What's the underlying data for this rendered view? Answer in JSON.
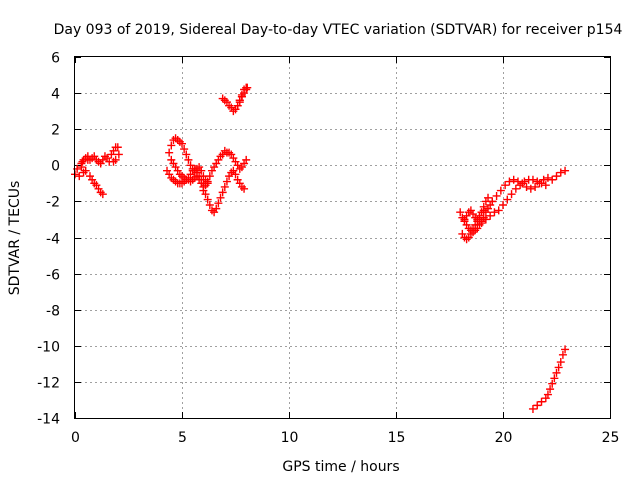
{
  "chart_data": {
    "type": "scatter",
    "title": "Day 093 of 2019, Sidereal Day-to-day VTEC variation (SDTVAR) for receiver p154",
    "xlabel": "GPS time / hours",
    "ylabel": "SDTVAR / TECUs",
    "xlim": [
      0,
      25
    ],
    "ylim": [
      -14,
      6
    ],
    "xticks": [
      0,
      5,
      10,
      15,
      20,
      25
    ],
    "yticks": [
      -14,
      -12,
      -10,
      -8,
      -6,
      -4,
      -2,
      0,
      2,
      4,
      6
    ],
    "grid": true,
    "marker": "plus",
    "color": "#ff0000",
    "series": [
      {
        "name": "p154",
        "x": [
          0.0,
          0.1,
          0.2,
          0.3,
          0.35,
          0.4,
          0.5,
          0.6,
          0.7,
          0.8,
          0.9,
          1.0,
          1.1,
          1.2,
          1.3,
          0.3,
          0.4,
          0.5,
          0.6,
          0.7,
          0.8,
          0.9,
          1.0,
          1.1,
          1.2,
          1.3,
          1.4,
          1.5,
          1.6,
          1.7,
          1.8,
          1.9,
          2.0,
          2.05,
          1.9,
          1.8,
          4.4,
          4.5,
          4.6,
          4.7,
          4.8,
          4.9,
          5.0,
          5.1,
          5.2,
          5.3,
          5.4,
          5.5,
          5.6,
          5.7,
          5.8,
          5.9,
          6.0,
          6.1,
          6.2,
          6.3,
          6.4,
          6.5,
          6.6,
          6.7,
          6.8,
          6.9,
          7.0,
          7.1,
          7.2,
          7.3,
          7.4,
          7.5,
          7.6,
          7.7,
          7.8,
          7.9,
          8.0,
          4.5,
          4.6,
          4.7,
          4.8,
          4.9,
          5.0,
          5.1,
          5.2,
          5.3,
          5.4,
          5.5,
          5.6,
          5.7,
          5.8,
          5.9,
          6.0,
          6.0,
          6.1,
          6.2,
          6.3,
          6.4,
          6.5,
          6.6,
          6.7,
          6.8,
          6.9,
          7.0,
          7.1,
          7.2,
          7.3,
          7.4,
          7.5,
          7.6,
          7.7,
          7.8,
          7.9,
          4.3,
          4.4,
          4.5,
          4.6,
          4.7,
          4.8,
          4.9,
          5.0,
          5.1,
          5.2,
          5.3,
          5.4,
          5.5,
          5.6,
          5.7,
          5.8,
          5.9,
          6.0,
          6.1,
          6.2,
          7.6,
          7.7,
          7.8,
          7.9,
          8.0,
          7.8,
          7.7,
          6.9,
          7.0,
          7.1,
          7.2,
          7.3,
          7.4,
          7.5,
          7.6,
          7.7,
          7.8,
          7.9,
          8.0,
          8.05,
          18.0,
          18.1,
          18.2,
          18.3,
          18.4,
          18.5,
          18.6,
          18.7,
          18.8,
          18.9,
          19.0,
          19.1,
          19.2,
          19.3,
          18.1,
          18.2,
          18.3,
          18.4,
          18.5,
          18.6,
          18.7,
          18.8,
          18.9,
          19.0,
          19.1,
          19.2,
          19.3,
          19.4,
          19.5,
          19.0,
          19.2,
          19.4,
          19.6,
          19.8,
          20.0,
          20.2,
          20.4,
          20.6,
          20.8,
          21.0,
          21.2,
          21.4,
          21.6,
          21.8,
          22.0,
          19.5,
          19.7,
          19.9,
          20.1,
          20.3,
          20.5,
          20.7,
          20.9,
          21.1,
          21.3,
          21.5,
          21.7,
          21.9,
          22.1,
          22.3,
          22.5,
          22.7,
          22.9,
          18.2,
          18.3,
          18.4,
          18.5,
          18.6,
          18.7,
          18.8,
          18.9,
          19.0,
          19.1,
          21.4,
          21.6,
          21.8,
          22.0,
          22.1,
          22.2,
          22.3,
          22.4,
          22.5,
          22.6,
          22.7,
          22.8,
          22.9
        ],
        "y": [
          -0.5,
          -0.2,
          -0.6,
          -0.1,
          0.2,
          -0.4,
          -0.3,
          0.3,
          -0.6,
          -0.8,
          -1.0,
          -1.1,
          -1.3,
          -1.5,
          -1.6,
          0.1,
          0.3,
          0.4,
          0.5,
          0.3,
          0.4,
          0.5,
          0.3,
          0.2,
          0.1,
          0.3,
          0.5,
          0.4,
          0.2,
          0.6,
          0.8,
          1.0,
          1.0,
          0.6,
          0.3,
          0.2,
          0.7,
          1.1,
          1.4,
          1.5,
          1.4,
          1.3,
          1.2,
          0.9,
          0.6,
          0.3,
          0.0,
          -0.2,
          -0.3,
          -0.4,
          -0.6,
          -0.8,
          -1.0,
          -1.1,
          -0.9,
          -0.6,
          -0.3,
          -0.1,
          0.1,
          0.3,
          0.5,
          0.6,
          0.8,
          0.7,
          0.7,
          0.6,
          0.4,
          0.2,
          0.0,
          -0.2,
          -0.1,
          0.1,
          0.3,
          0.3,
          0.1,
          -0.1,
          -0.3,
          -0.5,
          -0.6,
          -0.7,
          -0.8,
          -0.8,
          -0.9,
          -0.8,
          -0.7,
          -0.6,
          -0.8,
          -1.0,
          -1.2,
          -1.4,
          -1.6,
          -1.9,
          -2.2,
          -2.5,
          -2.6,
          -2.4,
          -2.1,
          -1.8,
          -1.5,
          -1.2,
          -0.9,
          -0.6,
          -0.4,
          -0.3,
          -0.5,
          -0.8,
          -1.0,
          -1.2,
          -1.3,
          -0.3,
          -0.5,
          -0.7,
          -0.8,
          -0.9,
          -1.0,
          -1.0,
          -1.0,
          -0.9,
          -0.8,
          -0.7,
          -0.5,
          -0.3,
          -0.2,
          -0.2,
          -0.1,
          -0.3,
          -0.6,
          -0.8,
          -1.0,
          3.3,
          3.6,
          3.9,
          4.2,
          4.3,
          3.8,
          3.5,
          3.7,
          3.6,
          3.5,
          3.3,
          3.2,
          3.0,
          3.1,
          3.3,
          3.6,
          3.8,
          4.0,
          4.2,
          4.3,
          -2.6,
          -2.9,
          -3.1,
          -3.3,
          -3.5,
          -3.6,
          -3.5,
          -3.3,
          -3.1,
          -2.9,
          -2.6,
          -2.3,
          -2.0,
          -1.8,
          -3.8,
          -4.0,
          -4.1,
          -4.0,
          -3.8,
          -3.7,
          -3.6,
          -3.5,
          -3.3,
          -3.1,
          -2.9,
          -2.6,
          -2.4,
          -2.2,
          -2.0,
          -3.2,
          -3.0,
          -2.8,
          -2.6,
          -2.5,
          -2.2,
          -1.9,
          -1.6,
          -1.3,
          -1.1,
          -0.9,
          -0.8,
          -0.8,
          -0.9,
          -1.0,
          -1.1,
          -2.0,
          -1.7,
          -1.4,
          -1.1,
          -0.9,
          -0.8,
          -0.9,
          -1.0,
          -1.2,
          -1.3,
          -1.2,
          -1.0,
          -0.8,
          -0.7,
          -0.8,
          -0.6,
          -0.4,
          -0.3,
          -3.0,
          -2.8,
          -2.6,
          -2.5,
          -2.7,
          -2.9,
          -3.0,
          -2.8,
          -2.6,
          -2.5,
          -13.5,
          -13.3,
          -13.1,
          -12.9,
          -12.7,
          -12.4,
          -12.1,
          -11.8,
          -11.5,
          -11.2,
          -10.9,
          -10.5,
          -10.2
        ]
      }
    ]
  }
}
